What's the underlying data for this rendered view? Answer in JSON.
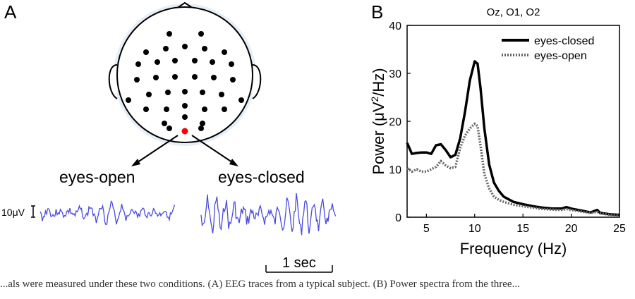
{
  "panels": {
    "a_label": "A",
    "b_label": "B"
  },
  "panel_a": {
    "condition_open": "eyes-open",
    "condition_closed": "eyes-closed",
    "voltage_scale": "10μV",
    "time_scale": "1 sec",
    "electrode_highlight_color": "#ff0000",
    "trace_color": "#4a4ae0"
  },
  "caption": "...als were measured under these two conditions. (A) EEG traces from a typical subject. (B) Power spectra from the three...",
  "chart_data": {
    "type": "line",
    "title": "Oz, O1, O2",
    "xlabel": "Frequency (Hz)",
    "ylabel": "Power (μV²/Hz)",
    "xlim": [
      3,
      25
    ],
    "ylim": [
      0,
      40
    ],
    "xticks": [
      5,
      10,
      15,
      20,
      25
    ],
    "yticks": [
      0,
      10,
      20,
      30,
      40
    ],
    "legend_position": "top-right",
    "series": [
      {
        "name": "eyes-closed",
        "color": "#000000",
        "style": "solid",
        "x": [
          3,
          3.5,
          4,
          4.5,
          5,
          5.5,
          6,
          6.5,
          7,
          7.5,
          8,
          8.5,
          9,
          9.5,
          10,
          10.3,
          10.6,
          11,
          11.5,
          12,
          12.5,
          13,
          14,
          15,
          16,
          17,
          18,
          19,
          19.5,
          20,
          21,
          22,
          22.7,
          23,
          24,
          25
        ],
        "y": [
          15.5,
          13.2,
          13.4,
          13.5,
          13.5,
          13.2,
          15.0,
          15.2,
          14.0,
          12.5,
          13.0,
          16.5,
          22.0,
          28.5,
          32.5,
          32.0,
          27.0,
          18.5,
          11.0,
          7.2,
          5.5,
          4.3,
          3.2,
          2.7,
          2.3,
          2.0,
          1.8,
          1.8,
          2.1,
          1.8,
          1.4,
          1.0,
          1.5,
          0.9,
          0.6,
          0.5
        ]
      },
      {
        "name": "eyes-open",
        "color": "#666666",
        "style": "dotted",
        "x": [
          3,
          3.5,
          4,
          4.5,
          5,
          5.5,
          6,
          6.5,
          7,
          7.5,
          8,
          8.5,
          9,
          9.5,
          10,
          10.3,
          10.6,
          11,
          11.5,
          12,
          12.5,
          13,
          14,
          15,
          16,
          17,
          18,
          19,
          19.5,
          20,
          21,
          22,
          22.7,
          23,
          24,
          25
        ],
        "y": [
          10.2,
          9.5,
          10.0,
          9.5,
          9.5,
          10.0,
          10.5,
          11.7,
          10.8,
          10.2,
          10.5,
          14.5,
          17.0,
          18.5,
          19.5,
          19.0,
          15.0,
          9.0,
          6.0,
          4.3,
          3.6,
          3.2,
          2.6,
          2.3,
          2.0,
          1.7,
          1.6,
          1.5,
          1.7,
          1.5,
          1.2,
          0.9,
          1.1,
          0.8,
          0.5,
          0.4
        ]
      }
    ]
  }
}
